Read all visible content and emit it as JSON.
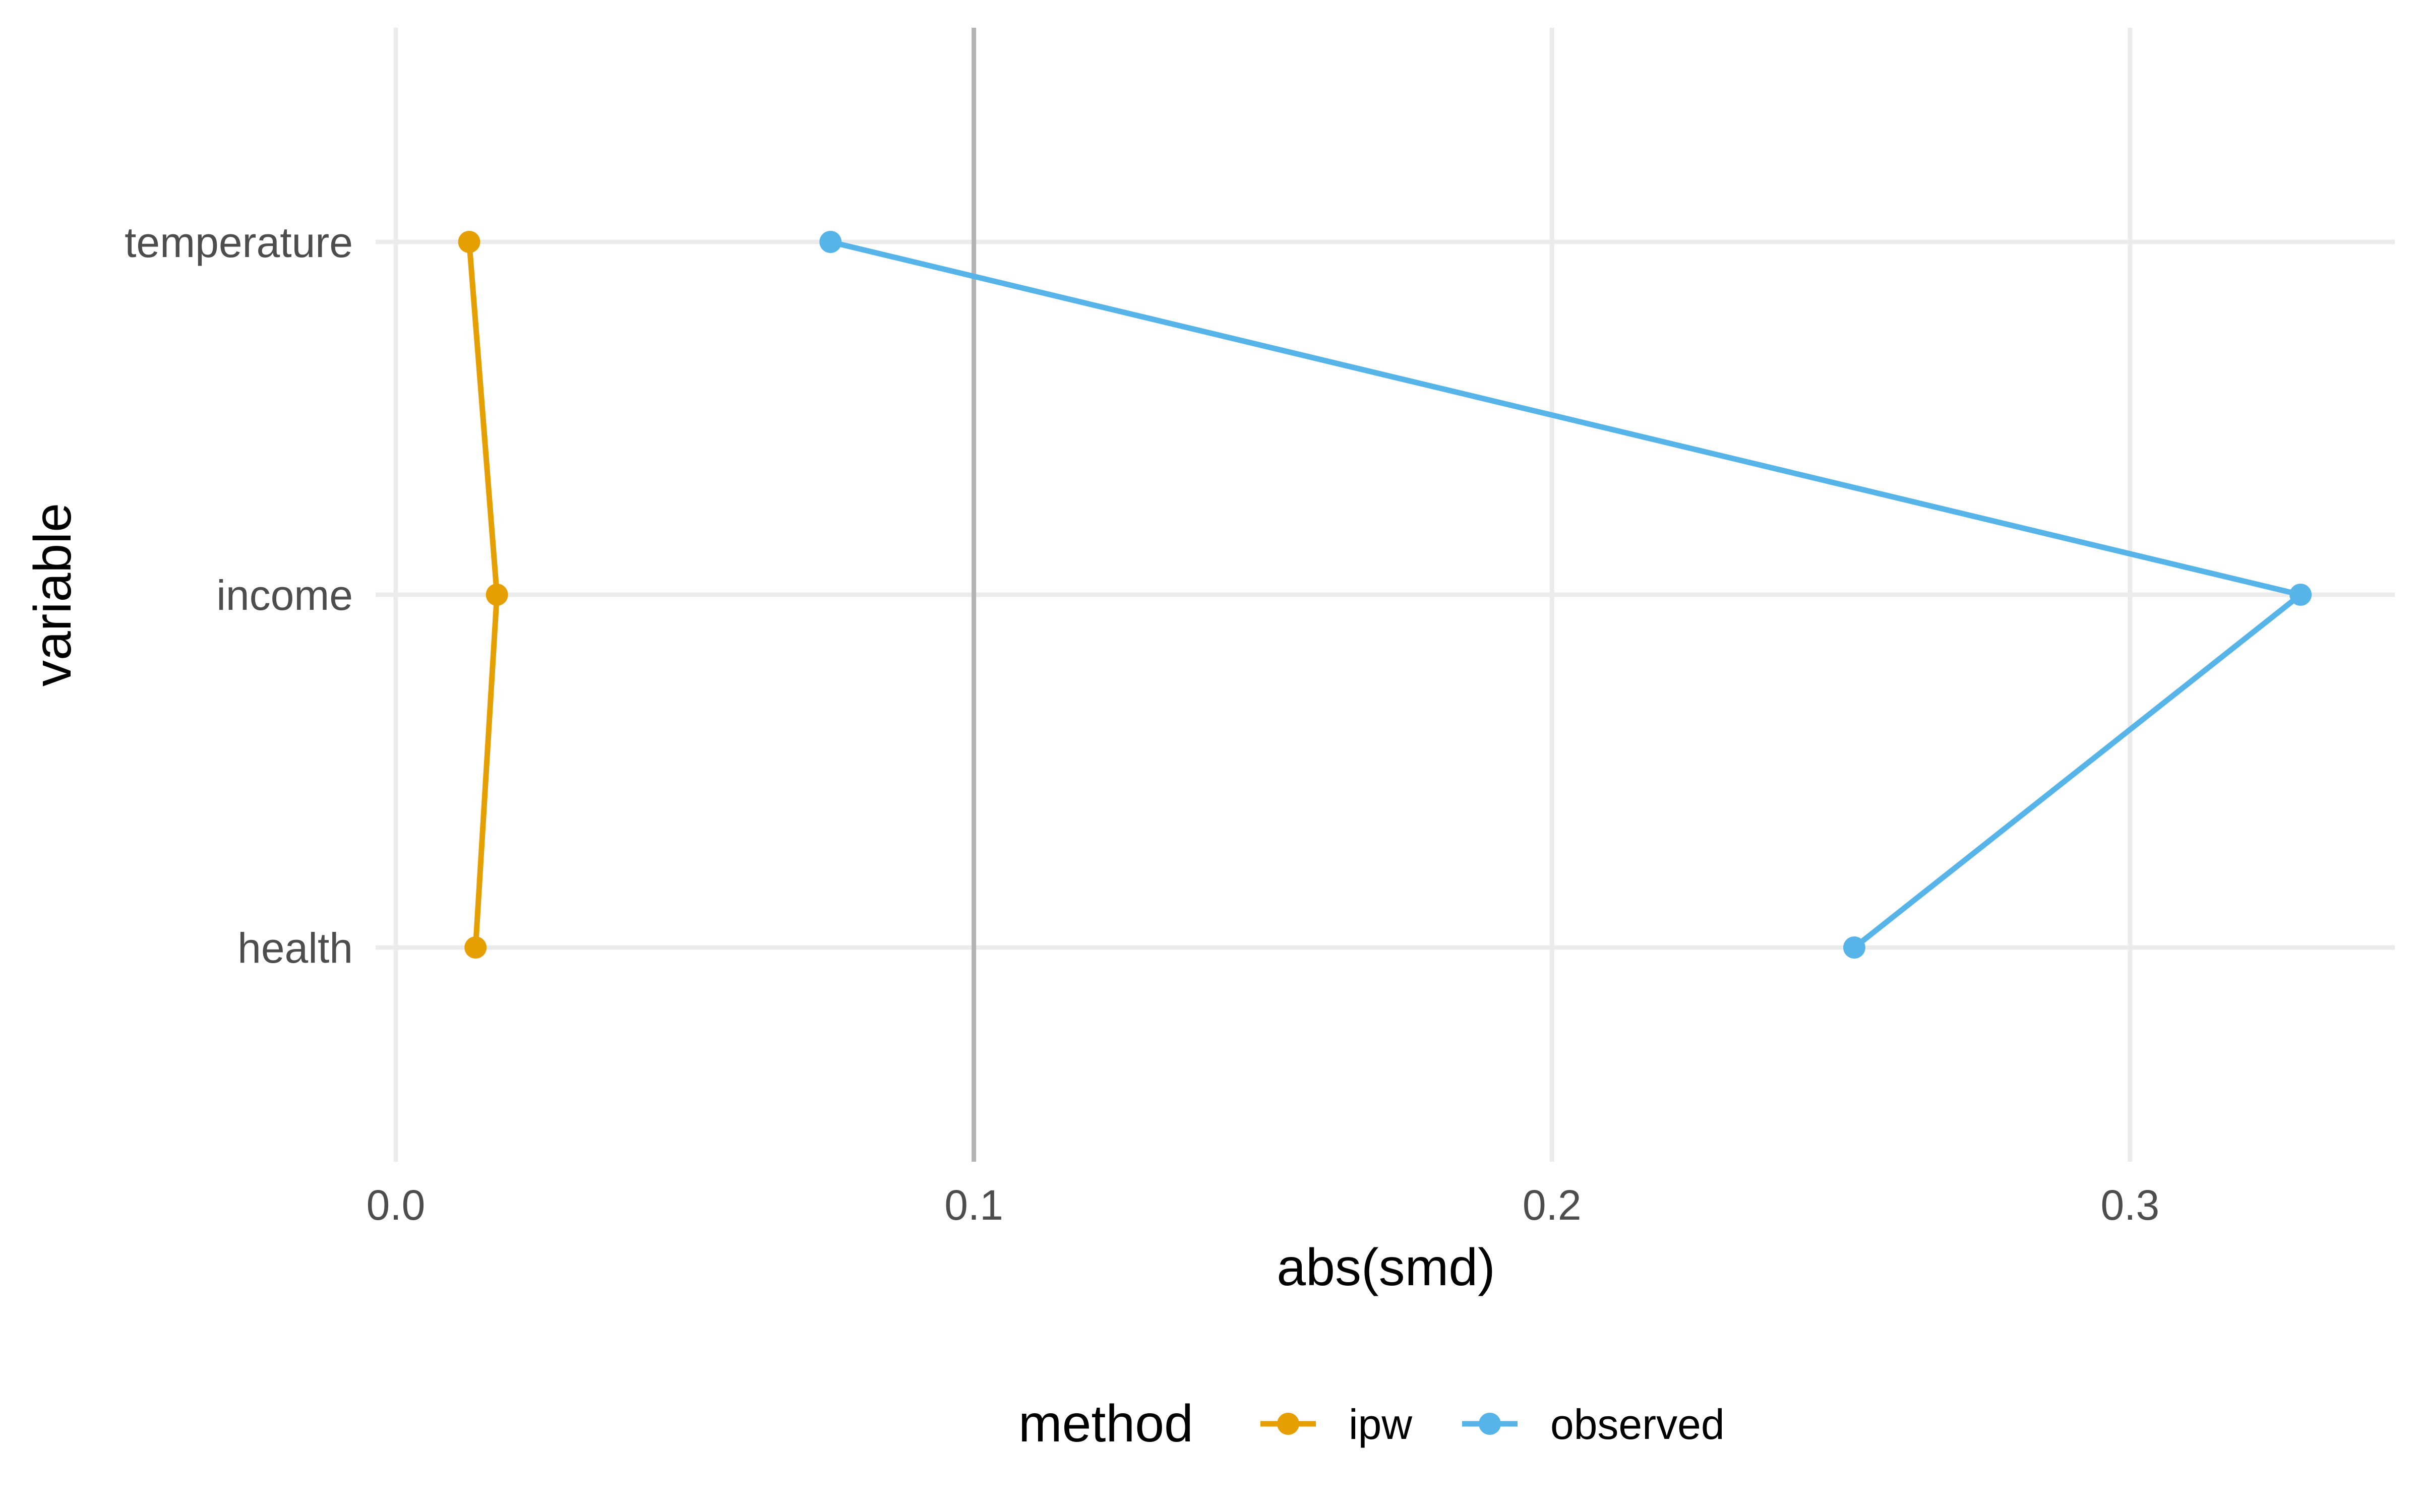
{
  "chart_data": {
    "type": "line",
    "orientation": "horizontal",
    "title": "",
    "xlabel": "abs(smd)",
    "ylabel": "variable",
    "categories": [
      "temperature",
      "income",
      "health"
    ],
    "x_ticks": [
      0.0,
      0.1,
      0.2,
      0.3
    ],
    "x_tick_labels": [
      "0.0",
      "0.1",
      "0.2",
      "0.3"
    ],
    "xlim": [
      0.0,
      0.3458
    ],
    "reference_line": {
      "axis": "x",
      "value": 0.1,
      "color": "#b3b3b3"
    },
    "grid": true,
    "legend": {
      "title": "method",
      "position": "bottom"
    },
    "series": [
      {
        "name": "ipw",
        "color": "#E69F00",
        "values": {
          "temperature": 0.0127,
          "income": 0.0175,
          "health": 0.0138
        }
      },
      {
        "name": "observed",
        "color": "#56B4E9",
        "values": {
          "temperature": 0.0752,
          "income": 0.3295,
          "health": 0.2523
        }
      }
    ]
  }
}
